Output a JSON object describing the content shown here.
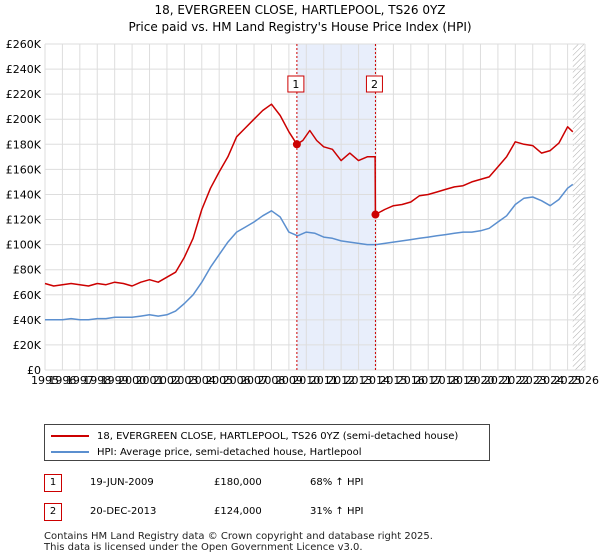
{
  "chart_data": {
    "type": "line",
    "title": "18, EVERGREEN CLOSE, HARTLEPOOL, TS26 0YZ",
    "subtitle": "Price paid vs. HM Land Registry's House Price Index (HPI)",
    "xlabel": "",
    "ylabel": "",
    "xlim": [
      1995,
      2026
    ],
    "ylim": [
      0,
      260000
    ],
    "x_ticks": [
      1995,
      1996,
      1997,
      1998,
      1999,
      2000,
      2001,
      2002,
      2003,
      2004,
      2005,
      2006,
      2007,
      2008,
      2009,
      2010,
      2011,
      2012,
      2013,
      2014,
      2015,
      2016,
      2017,
      2018,
      2019,
      2020,
      2021,
      2022,
      2023,
      2024,
      2025,
      2026
    ],
    "y_ticks": [
      0,
      20000,
      40000,
      60000,
      80000,
      100000,
      120000,
      140000,
      160000,
      180000,
      200000,
      220000,
      240000,
      260000
    ],
    "y_tick_labels": [
      "£0",
      "£20K",
      "£40K",
      "£60K",
      "£80K",
      "£100K",
      "£120K",
      "£140K",
      "£160K",
      "£180K",
      "£200K",
      "£220K",
      "£240K",
      "£260K"
    ],
    "grid": true,
    "shaded_range": [
      2009.46,
      2013.97
    ],
    "hatched_from": 2025.3,
    "series": [
      {
        "name": "18, EVERGREEN CLOSE, HARTLEPOOL, TS26 0YZ (semi-detached house)",
        "color": "#cc0000",
        "x": [
          1995,
          1995.5,
          1996,
          1996.5,
          1997,
          1997.5,
          1998,
          1998.5,
          1999,
          1999.5,
          2000,
          2000.5,
          2001,
          2001.5,
          2002,
          2002.5,
          2003,
          2003.5,
          2004,
          2004.5,
          2005,
          2005.5,
          2006,
          2006.5,
          2007,
          2007.5,
          2008,
          2008.5,
          2009,
          2009.46,
          2009.8,
          2010.2,
          2010.6,
          2011,
          2011.5,
          2012,
          2012.5,
          2013,
          2013.5,
          2013.95,
          2013.97,
          2014.5,
          2015,
          2015.5,
          2016,
          2016.5,
          2017,
          2017.5,
          2018,
          2018.5,
          2019,
          2019.5,
          2020,
          2020.5,
          2021,
          2021.5,
          2022,
          2022.5,
          2023,
          2023.5,
          2024,
          2024.5,
          2025,
          2025.3
        ],
        "y": [
          69000,
          67000,
          68000,
          69000,
          68000,
          67000,
          69000,
          68000,
          70000,
          69000,
          67000,
          70000,
          72000,
          70000,
          74000,
          78000,
          90000,
          105000,
          128000,
          145000,
          158000,
          170000,
          186000,
          193000,
          200000,
          207000,
          212000,
          203000,
          190000,
          180000,
          183000,
          191000,
          183000,
          178000,
          176000,
          167000,
          173000,
          167000,
          170000,
          170000,
          124000,
          128000,
          131000,
          132000,
          134000,
          139000,
          140000,
          142000,
          144000,
          146000,
          147000,
          150000,
          152000,
          154000,
          162000,
          170000,
          182000,
          180000,
          179000,
          173000,
          175000,
          181000,
          194000,
          190000
        ]
      },
      {
        "name": "HPI: Average price, semi-detached house, Hartlepool",
        "color": "#5b8fcf",
        "x": [
          1995,
          1995.5,
          1996,
          1996.5,
          1997,
          1997.5,
          1998,
          1998.5,
          1999,
          1999.5,
          2000,
          2000.5,
          2001,
          2001.5,
          2002,
          2002.5,
          2003,
          2003.5,
          2004,
          2004.5,
          2005,
          2005.5,
          2006,
          2006.5,
          2007,
          2007.5,
          2008,
          2008.5,
          2009,
          2009.5,
          2010,
          2010.5,
          2011,
          2011.5,
          2012,
          2012.5,
          2013,
          2013.5,
          2014,
          2014.5,
          2015,
          2015.5,
          2016,
          2016.5,
          2017,
          2017.5,
          2018,
          2018.5,
          2019,
          2019.5,
          2020,
          2020.5,
          2021,
          2021.5,
          2022,
          2022.5,
          2023,
          2023.5,
          2024,
          2024.5,
          2025,
          2025.3
        ],
        "y": [
          40000,
          40000,
          40000,
          41000,
          40000,
          40000,
          41000,
          41000,
          42000,
          42000,
          42000,
          43000,
          44000,
          43000,
          44000,
          47000,
          53000,
          60000,
          70000,
          82000,
          92000,
          102000,
          110000,
          114000,
          118000,
          123000,
          127000,
          122000,
          110000,
          107000,
          110000,
          109000,
          106000,
          105000,
          103000,
          102000,
          101000,
          100000,
          100000,
          101000,
          102000,
          103000,
          104000,
          105000,
          106000,
          107000,
          108000,
          109000,
          110000,
          110000,
          111000,
          113000,
          118000,
          123000,
          132000,
          137000,
          138000,
          135000,
          131000,
          136000,
          145000,
          148000
        ]
      }
    ],
    "annotations": [
      {
        "label": "1",
        "x": 2009.46,
        "y": 180000,
        "color": "#cc0000"
      },
      {
        "label": "2",
        "x": 2013.97,
        "y": 124000,
        "color": "#cc0000"
      }
    ]
  },
  "legend": {
    "items": [
      {
        "label": "18, EVERGREEN CLOSE, HARTLEPOOL, TS26 0YZ (semi-detached house)",
        "color": "#cc0000"
      },
      {
        "label": "HPI: Average price, semi-detached house, Hartlepool",
        "color": "#5b8fcf"
      }
    ]
  },
  "sales": [
    {
      "num": "1",
      "date": "19-JUN-2009",
      "price": "£180,000",
      "hpi": "68% ↑ HPI"
    },
    {
      "num": "2",
      "date": "20-DEC-2013",
      "price": "£124,000",
      "hpi": "31% ↑ HPI"
    }
  ],
  "footer": "Contains HM Land Registry data © Crown copyright and database right 2025.\nThis data is licensed under the Open Government Licence v3.0."
}
